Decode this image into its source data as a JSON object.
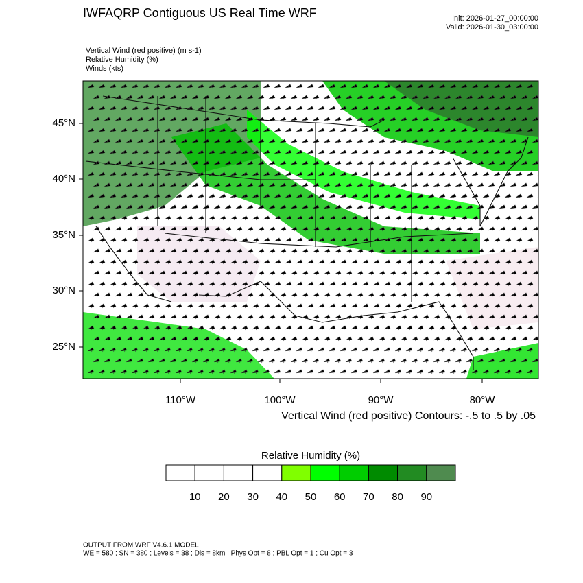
{
  "title": "IWFAQRP Contiguous US Real Time WRF",
  "init": "Init: 2026-01-27_00:00:00",
  "valid": "Valid: 2026-01-30_03:00:00",
  "fields": [
    "Vertical Wind (red positive)   (m s-1)",
    "Relative Humidity   (%)",
    "Winds   (kts)"
  ],
  "map": {
    "lat_labels": [
      "45°N",
      "40°N",
      "35°N",
      "30°N",
      "25°N"
    ],
    "lon_labels": [
      "110°W",
      "100°W",
      "90°W",
      "80°W"
    ]
  },
  "contour_note": "Vertical Wind (red positive) Contours: -.5 to .5 by .05",
  "colorbar": {
    "title": "Relative Humidity  (%)",
    "colors": [
      "#ffffff",
      "#ffffff",
      "#ffffff",
      "#ffffff",
      "#80ff00",
      "#00ff00",
      "#00cd00",
      "#008b00",
      "#228b22",
      "#4f8b4f"
    ],
    "labels": [
      10,
      20,
      30,
      40,
      50,
      60,
      70,
      80,
      90
    ]
  },
  "footer": {
    "line1": "OUTPUT FROM WRF V4.6.1 MODEL",
    "line2": "WE = 580 ; SN = 380 ; Levels = 38 ; Dis = 8km ; Phys Opt = 8 ; PBL Opt = 1 ; Cu Opt = 3"
  }
}
